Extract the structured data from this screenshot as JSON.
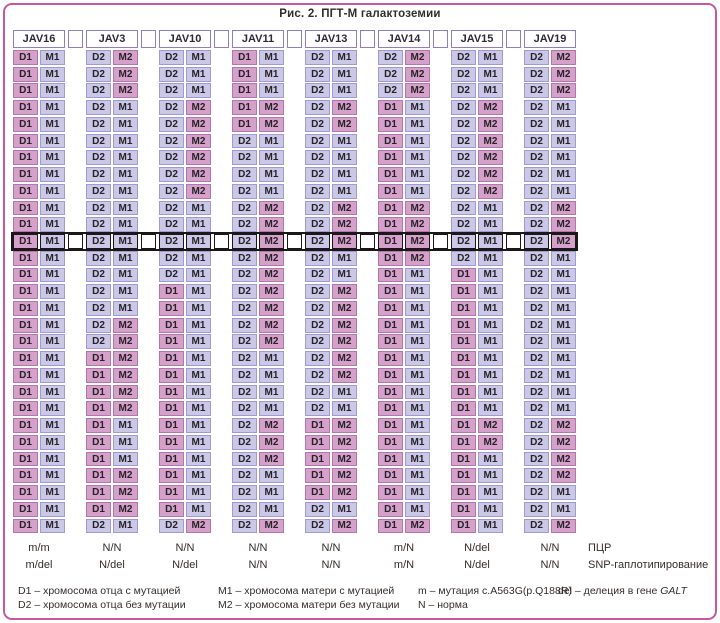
{
  "title": "Рис. 2. ПГТ-М галактоземии",
  "table": {
    "columns": [
      "JAV16",
      "JAV3",
      "JAV10",
      "JAV11",
      "JAV13",
      "JAV14",
      "JAV15",
      "JAV19"
    ],
    "pink_values": [
      "D1",
      "M2"
    ],
    "lavender_values": [
      "D2",
      "M1"
    ],
    "highlighted_row": 12,
    "rows": [
      [
        "D1 M1",
        "D2 M2",
        "D2 M1",
        "D1 M1",
        "D2 M1",
        "D2 M2",
        "D2 M1",
        "D2 M2"
      ],
      [
        "D1 M1",
        "D2 M2",
        "D2 M1",
        "D1 M1",
        "D2 M1",
        "D2 M2",
        "D2 M1",
        "D2 M2"
      ],
      [
        "D1 M1",
        "D2 M2",
        "D2 M1",
        "D1 M1",
        "D2 M1",
        "D2 M2",
        "D2 M1",
        "D2 M2"
      ],
      [
        "D1 M1",
        "D2 M1",
        "D2 M2",
        "D1 M2",
        "D2 M2",
        "D1 M1",
        "D2 M2",
        "D2 M1"
      ],
      [
        "D1 M1",
        "D2 M1",
        "D2 M2",
        "D1 M2",
        "D2 M2",
        "D1 M1",
        "D2 M2",
        "D2 M1"
      ],
      [
        "D1 M1",
        "D2 M1",
        "D2 M2",
        "D2 M1",
        "D2 M1",
        "D1 M1",
        "D2 M2",
        "D2 M1"
      ],
      [
        "D1 M1",
        "D2 M1",
        "D2 M2",
        "D2 M1",
        "D2 M1",
        "D1 M1",
        "D2 M2",
        "D2 M1"
      ],
      [
        "D1 M1",
        "D2 M1",
        "D2 M2",
        "D2 M1",
        "D2 M1",
        "D1 M1",
        "D2 M2",
        "D2 M1"
      ],
      [
        "D1 M1",
        "D2 M1",
        "D2 M2",
        "D2 M1",
        "D2 M1",
        "D1 M1",
        "D2 M2",
        "D2 M1"
      ],
      [
        "D1 M1",
        "D2 M1",
        "D2 M1",
        "D2 M2",
        "D2 M2",
        "D1 M2",
        "D2 M1",
        "D2 M2"
      ],
      [
        "D1 M1",
        "D2 M1",
        "D2 M1",
        "D2 M2",
        "D2 M2",
        "D1 M2",
        "D2 M1",
        "D2 M2"
      ],
      [
        "D1 M1",
        "D2 M1",
        "D2 M1",
        "D2 M2",
        "D2 M2",
        "D1 M2",
        "D2 M1",
        "D2 M2"
      ],
      [
        "D1 M1",
        "D2 M1",
        "D2 M1",
        "D2 M2",
        "D2 M1",
        "D1 M2",
        "D2 M1",
        "D2 M1"
      ],
      [
        "D1 M1",
        "D2 M1",
        "D2 M1",
        "D2 M2",
        "D2 M1",
        "D1 M1",
        "D1 M1",
        "D2 M1"
      ],
      [
        "D1 M1",
        "D2 M1",
        "D1 M1",
        "D2 M2",
        "D2 M2",
        "D1 M1",
        "D1 M1",
        "D2 M1"
      ],
      [
        "D1 M1",
        "D2 M1",
        "D1 M1",
        "D2 M2",
        "D2 M2",
        "D1 M1",
        "D1 M1",
        "D2 M1"
      ],
      [
        "D1 M1",
        "D2 M2",
        "D1 M1",
        "D2 M2",
        "D2 M2",
        "D1 M1",
        "D1 M1",
        "D2 M1"
      ],
      [
        "D1 M1",
        "D2 M2",
        "D1 M1",
        "D2 M2",
        "D2 M2",
        "D1 M1",
        "D1 M1",
        "D2 M1"
      ],
      [
        "D1 M1",
        "D1 M2",
        "D1 M1",
        "D2 M1",
        "D2 M2",
        "D1 M1",
        "D1 M1",
        "D2 M1"
      ],
      [
        "D1 M1",
        "D1 M2",
        "D1 M1",
        "D2 M1",
        "D2 M2",
        "D1 M1",
        "D1 M1",
        "D2 M1"
      ],
      [
        "D1 M1",
        "D1 M2",
        "D1 M1",
        "D2 M1",
        "D2 M1",
        "D1 M1",
        "D1 M1",
        "D2 M1"
      ],
      [
        "D1 M1",
        "D1 M2",
        "D1 M1",
        "D2 M1",
        "D2 M1",
        "D1 M1",
        "D1 M1",
        "D2 M1"
      ],
      [
        "D1 M1",
        "D1 M1",
        "D1 M1",
        "D2 M2",
        "D1 M2",
        "D1 M1",
        "D1 M2",
        "D2 M2"
      ],
      [
        "D1 M1",
        "D1 M1",
        "D1 M1",
        "D2 M2",
        "D1 M2",
        "D1 M1",
        "D1 M2",
        "D2 M2"
      ],
      [
        "D1 M1",
        "D1 M1",
        "D1 M1",
        "D2 M2",
        "D1 M2",
        "D1 M1",
        "D1 M1",
        "D2 M2"
      ],
      [
        "D1 M1",
        "D1 M2",
        "D1 M1",
        "D2 M1",
        "D1 M2",
        "D1 M1",
        "D1 M1",
        "D2 M2"
      ],
      [
        "D1 M1",
        "D1 M2",
        "D1 M1",
        "D2 M1",
        "D1 M2",
        "D1 M1",
        "D1 M1",
        "D2 M1"
      ],
      [
        "D1 M1",
        "D1 M2",
        "D1 M1",
        "D2 M1",
        "D2 M1",
        "D1 M1",
        "D1 M1",
        "D2 M1"
      ],
      [
        "D1 M1",
        "D2 M1",
        "D2 M2",
        "D2 M2",
        "D2 M2",
        "D1 M2",
        "D1 M1",
        "D2 M2"
      ]
    ]
  },
  "bottom": {
    "pcr": {
      "label": "ПЦР",
      "values": [
        "m/m",
        "N/N",
        "N/N",
        "N/N",
        "N/N",
        "m/N",
        "N/del",
        "N/N"
      ]
    },
    "snp": {
      "label": "SNP-гаплотипирование",
      "values": [
        "m/del",
        "N/del",
        "N/del",
        "N/N",
        "N/N",
        "m/N",
        "N/del",
        "N/N"
      ]
    }
  },
  "legend": {
    "columns": [
      [
        {
          "text": "D1 – хромосома отца с мутацией"
        },
        {
          "text": "D2 – хромосома отца без мутации"
        }
      ],
      [
        {
          "text": "M1 – хромосома матери с мутацией"
        },
        {
          "text": "M2 – хромосома матери без мутации"
        }
      ],
      [
        {
          "text": "m – мутация c.A563G(p.Q188R)"
        },
        {
          "text": "N – норма"
        }
      ],
      [
        {
          "text": "del – делеция в гене ",
          "gene": "GALT"
        }
      ]
    ]
  },
  "colors": {
    "father_mutant_fill": "#d5a0c9",
    "father_mutant_border": "#b277aa",
    "normal_fill": "#cbc7e6",
    "normal_border": "#a09ace",
    "frame_border": "#c4589f",
    "header_border": "#8d80b6",
    "highlight_border": "#1c181a",
    "text": "#322d2b"
  }
}
